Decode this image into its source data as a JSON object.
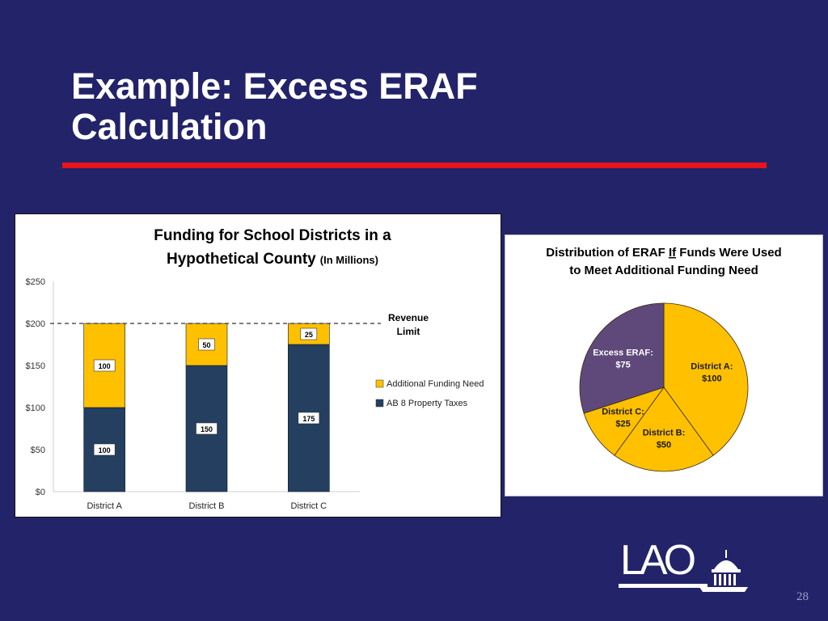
{
  "slide": {
    "title_line1": "Example: Excess ERAF",
    "title_line2": "Calculation",
    "page_number": "28",
    "logo_text": "LAO",
    "colors": {
      "background": "#23236a",
      "title_rule": "#e8141c",
      "title_text": "#ffffff"
    }
  },
  "chart_data": [
    {
      "type": "bar",
      "stacked": true,
      "title_line1": "Funding for School Districts in a",
      "title_line2": "Hypothetical County",
      "title_suffix": "(In Millions)",
      "categories": [
        "District A",
        "District B",
        "District C"
      ],
      "series": [
        {
          "name": "AB 8 Property Taxes",
          "values": [
            100,
            150,
            175
          ],
          "color": "#243f60"
        },
        {
          "name": "Additional Funding Need",
          "values": [
            100,
            50,
            25
          ],
          "color": "#ffc000"
        }
      ],
      "ylim": [
        0,
        250
      ],
      "yticks": [
        0,
        50,
        100,
        150,
        200,
        250
      ],
      "ytick_labels": [
        "$0",
        "$50",
        "$100",
        "$150",
        "$200",
        "$250"
      ],
      "reference_line": {
        "value": 200,
        "label_line1": "Revenue",
        "label_line2": "Limit",
        "style": "dashed"
      },
      "legend_placement": "right",
      "grid": false
    },
    {
      "type": "pie",
      "title_line1_before": "Distribution of ERAF ",
      "title_line1_emph": "If",
      "title_line1_after": " Funds Were Used",
      "title_line2": "to Meet Additional Funding Need",
      "slices": [
        {
          "label": "District A:",
          "value_label": "$100",
          "value": 100,
          "color": "#ffc000"
        },
        {
          "label": "District B:",
          "value_label": "$50",
          "value": 50,
          "color": "#ffc000"
        },
        {
          "label": "District C:",
          "value_label": "$25",
          "value": 25,
          "color": "#ffc000"
        },
        {
          "label": "Excess ERAF:",
          "value_label": "$75",
          "value": 75,
          "color": "#5f497a"
        }
      ]
    }
  ]
}
